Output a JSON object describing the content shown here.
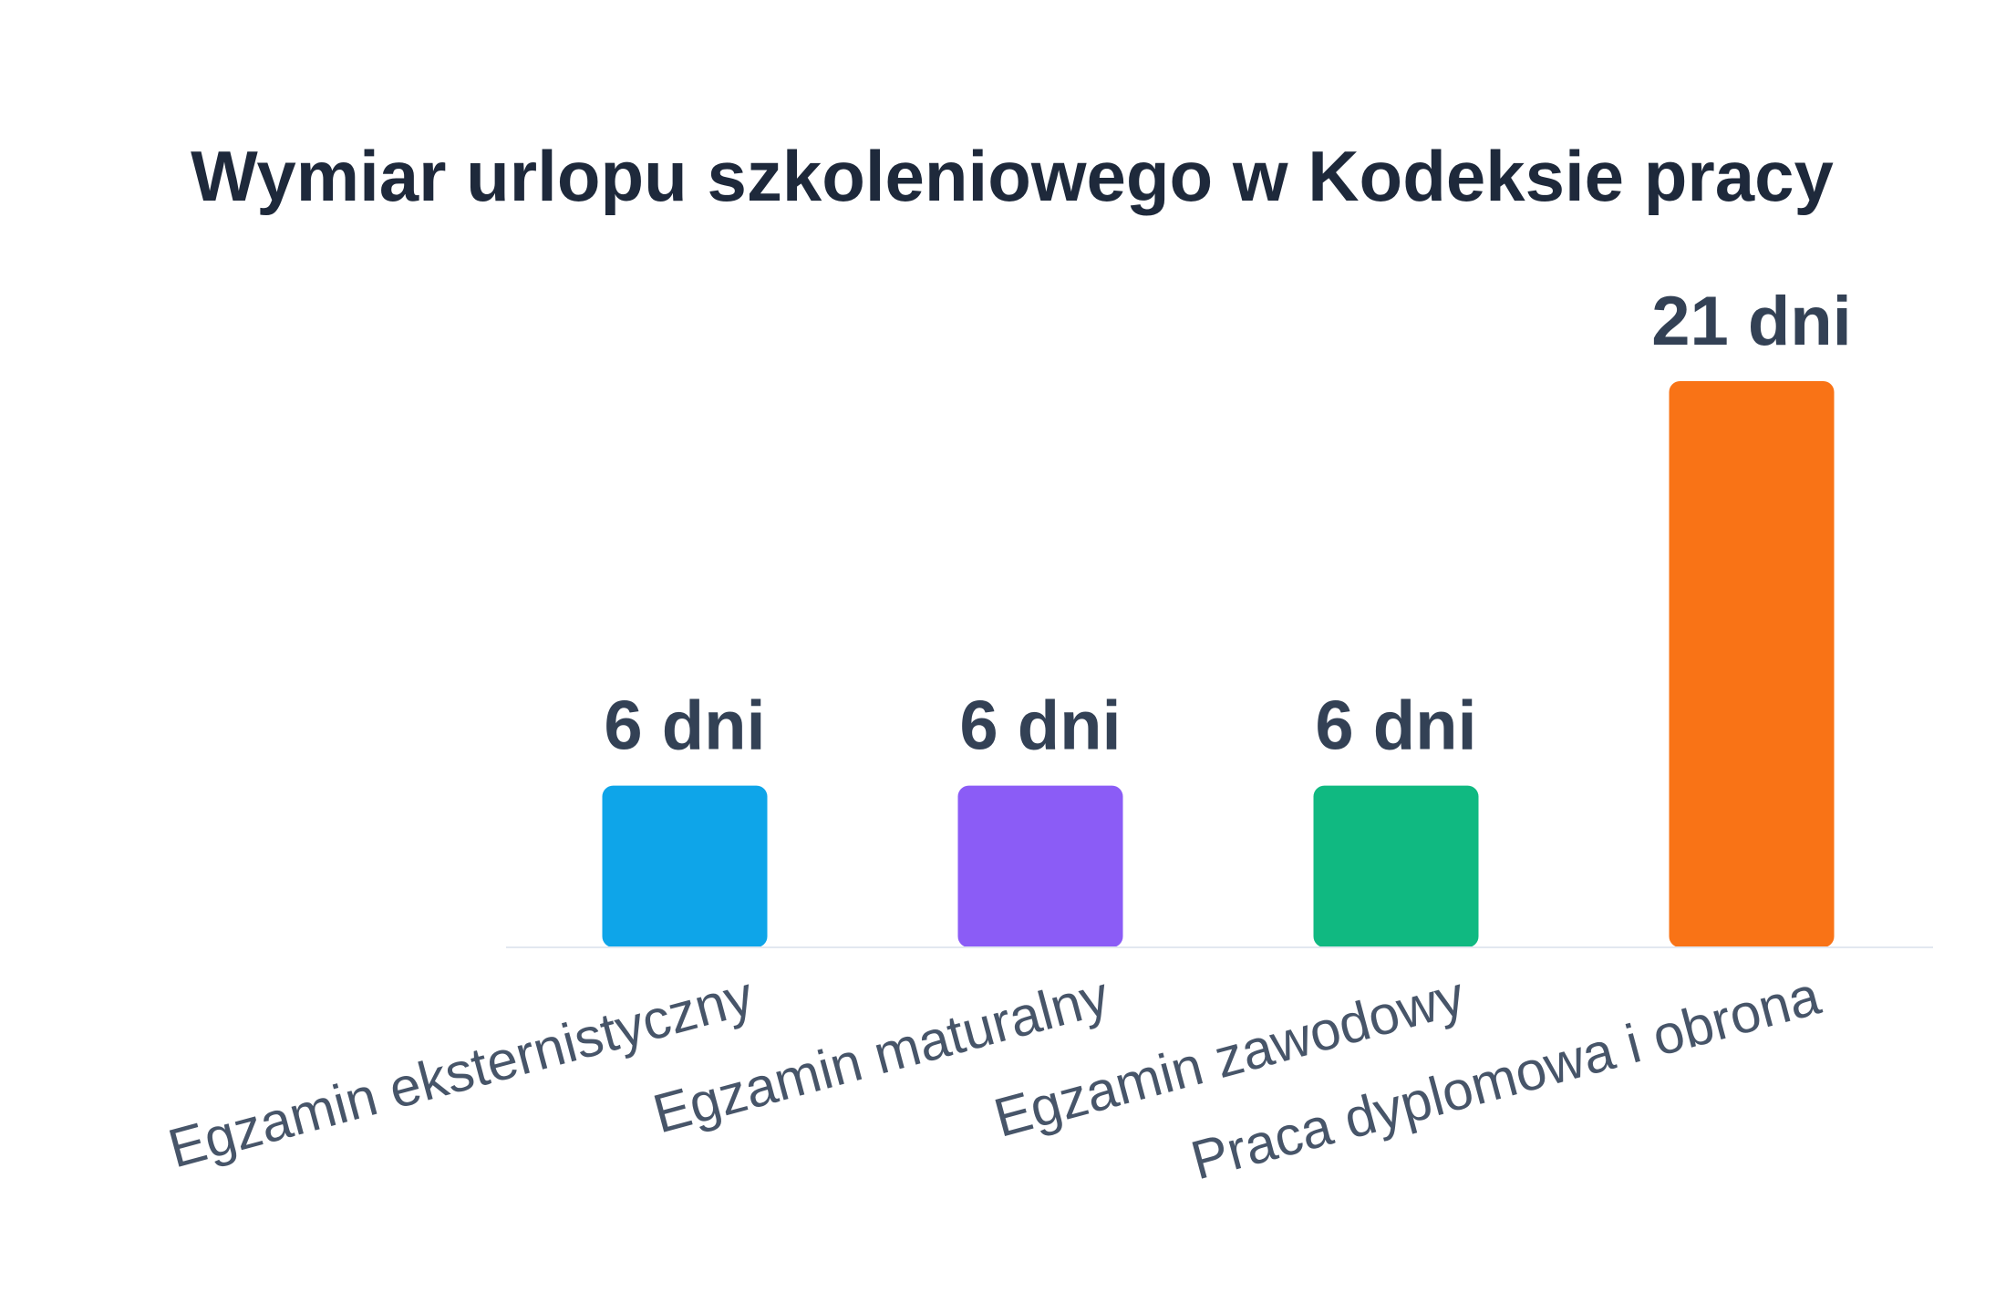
{
  "chart_data": {
    "type": "bar",
    "title": "Wymiar urlopu szkoleniowego w Kodeksie pracy",
    "xlabel": "",
    "ylabel": "",
    "unit": "dni",
    "ylim": [
      0,
      21
    ],
    "grid": false,
    "legend": "none",
    "categories": [
      "Egzamin eksternistyczny",
      "Egzamin maturalny",
      "Egzamin zawodowy",
      "Praca dyplomowa i obrona"
    ],
    "values": [
      6,
      6,
      6,
      21
    ],
    "value_labels": [
      "6 dni",
      "6 dni",
      "6 dni",
      "21 dni"
    ],
    "colors": [
      "#0ea5e9",
      "#8b5cf6",
      "#10b981",
      "#f97316"
    ],
    "axis_color": "#e2e8f0"
  }
}
